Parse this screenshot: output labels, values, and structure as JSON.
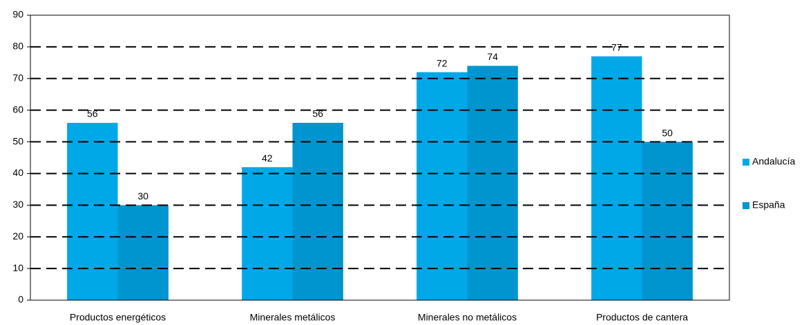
{
  "chart_data": {
    "type": "bar",
    "categories": [
      "Productos energéticos",
      "Minerales metálicos",
      "Minerales no metálicos",
      "Productos de cantera"
    ],
    "series": [
      {
        "name": "Andalucía",
        "color": "#00a8e8",
        "values": [
          56,
          42,
          72,
          77
        ]
      },
      {
        "name": "España",
        "color": "#0095cf",
        "values": [
          30,
          56,
          74,
          50
        ]
      }
    ],
    "ylim": [
      0,
      90
    ],
    "yticks": [
      0,
      10,
      20,
      30,
      40,
      50,
      60,
      70,
      80,
      90
    ],
    "grid": true,
    "legend": "right"
  }
}
